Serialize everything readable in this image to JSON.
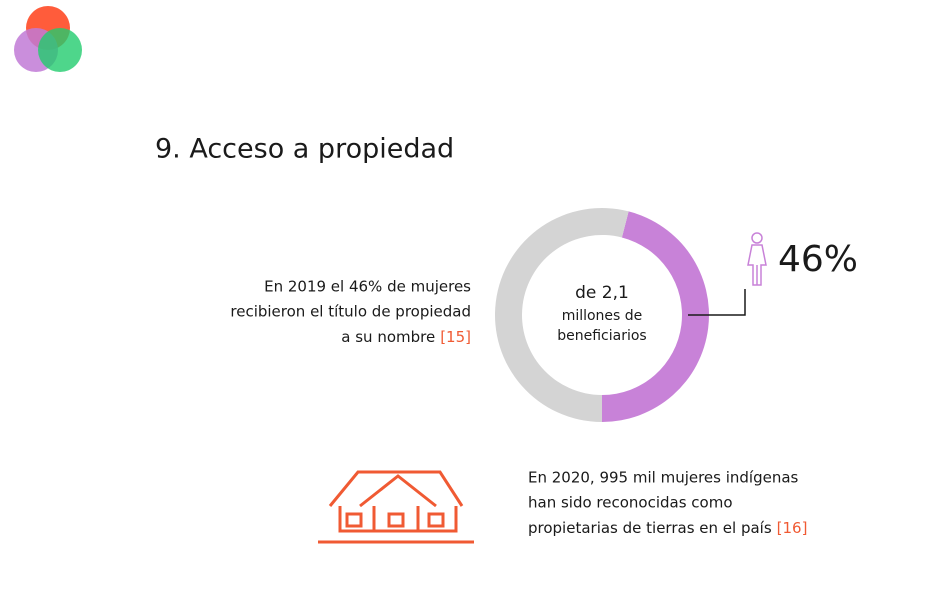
{
  "title": "9. Acceso a propiedad",
  "chart_data": {
    "type": "donut",
    "categories": [
      null,
      null
    ],
    "values": [
      46,
      54
    ],
    "value_labels": [
      "46%",
      null
    ],
    "colors": [
      "#c882d8",
      "#d4d4d4"
    ],
    "center_label": [
      "de 2,1",
      "millones de",
      "beneficiarios"
    ]
  },
  "note1": {
    "lines": [
      "En 2019 el 46% de mujeres",
      "recibieron el título de propiedad",
      "a su nombre"
    ],
    "ref": "[15]"
  },
  "note2": {
    "lines": [
      "En 2020, 995 mil mujeres indígenas",
      "han sido reconocidas como",
      "propietarias de tierras en el país"
    ],
    "ref": "[16]"
  }
}
